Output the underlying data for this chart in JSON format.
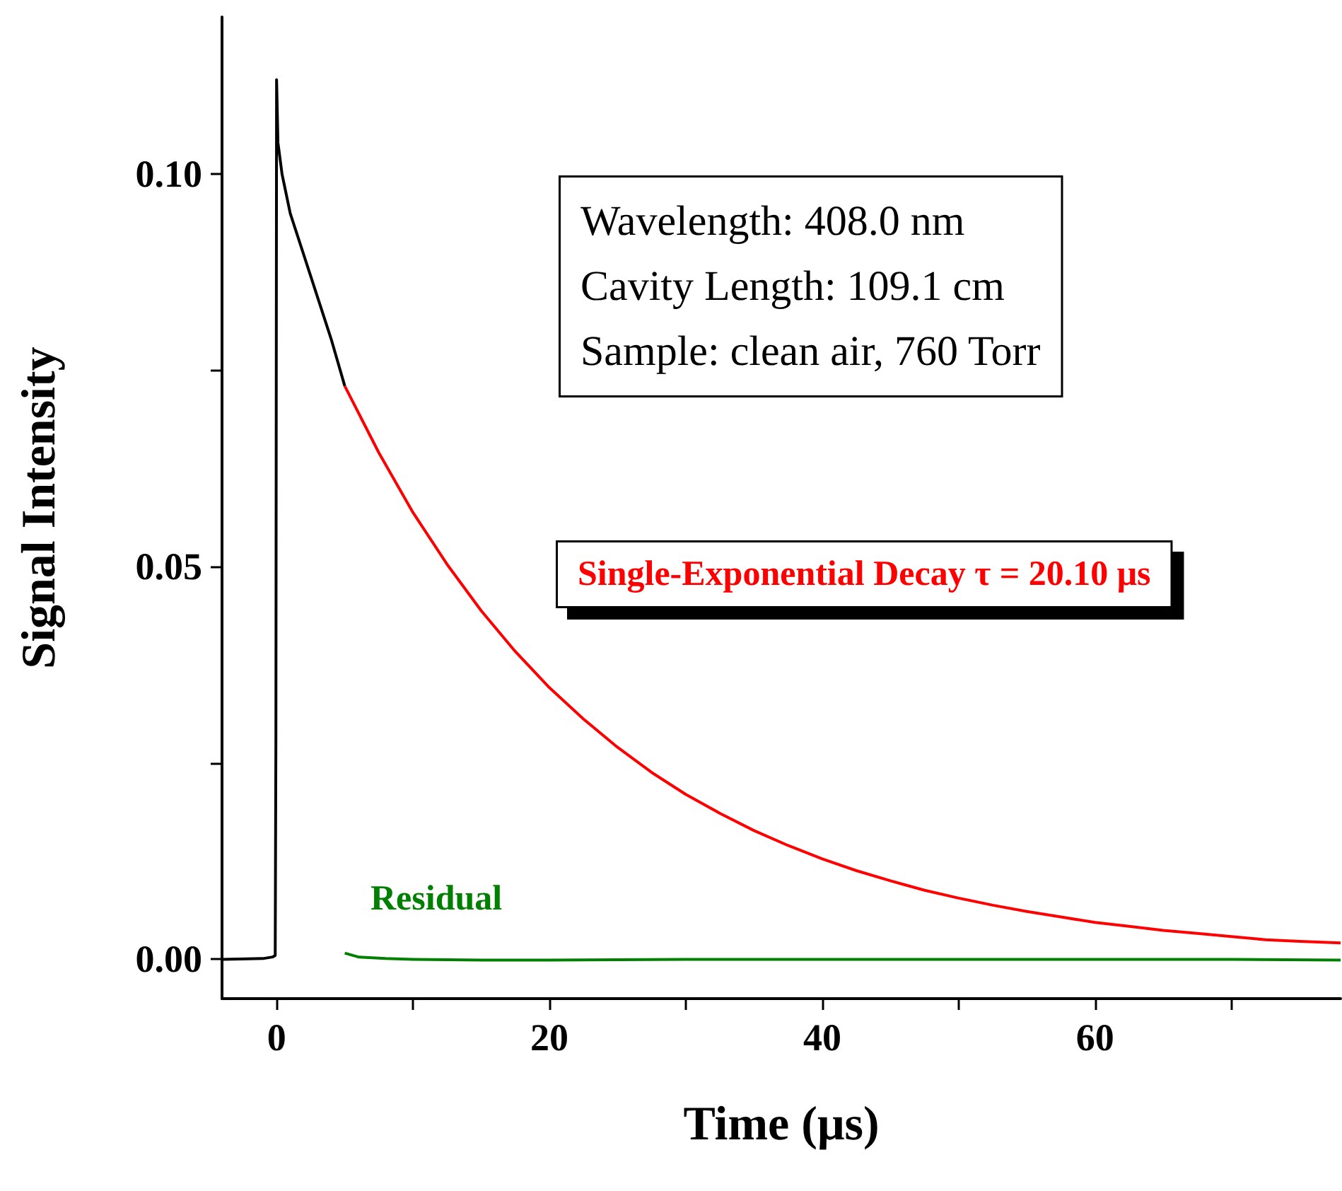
{
  "chart_data": {
    "type": "line",
    "xlabel": "Time (μs)",
    "ylabel": "Signal Intensity",
    "annotations": [
      "Wavelength: 408.0 nm\nCavity Length: 109.1 cm\nSample: clean air, 760 Torr"
    ],
    "series": [
      {
        "color": "#000000",
        "x": [
          -4,
          -1,
          -0.3,
          -0.1,
          -0.05,
          0,
          0.1,
          0.4,
          1,
          2.5,
          4,
          5
        ],
        "values": [
          0.0,
          0.0001,
          0.0003,
          0.0005,
          0.028,
          0.112,
          0.104,
          0.1,
          0.095,
          0.087,
          0.079,
          0.073
        ]
      },
      {
        "name": "Single-Exponential Decay τ = 20.10 μs",
        "color": "#ff0000",
        "x": [
          5,
          7.5,
          10,
          12.5,
          15,
          17.5,
          20,
          22.5,
          25,
          27.5,
          30,
          32.5,
          35,
          37.5,
          40,
          42.5,
          45,
          47.5,
          50,
          52.5,
          55,
          57.5,
          60,
          62.5,
          65,
          67.5,
          70,
          72.5,
          75,
          78
        ],
        "values": [
          0.073,
          0.0645,
          0.0569,
          0.0503,
          0.0444,
          0.0392,
          0.0346,
          0.0306,
          0.027,
          0.0238,
          0.021,
          0.0186,
          0.0164,
          0.0145,
          0.0128,
          0.0113,
          0.01,
          0.0088,
          0.0078,
          0.0069,
          0.0061,
          0.0054,
          0.0047,
          0.0042,
          0.0037,
          0.0033,
          0.0029,
          0.0025,
          0.0023,
          0.0021
        ]
      },
      {
        "name": "Residual",
        "color": "#008000",
        "x": [
          5,
          6,
          8,
          10,
          15,
          20,
          30,
          40,
          50,
          60,
          70,
          78
        ],
        "values": [
          0.0008,
          0.0003,
          0.0001,
          0.0,
          -0.0001,
          -0.0001,
          0.0,
          0.0,
          0.0,
          0.0,
          0.0,
          -0.0001
        ]
      }
    ],
    "xlim": [
      -4,
      78
    ],
    "xticks": [
      0,
      {
        "value": 10,
        "label": null
      },
      20,
      {
        "value": 30,
        "label": null
      },
      40,
      {
        "value": 50,
        "label": null
      },
      60,
      {
        "value": 70,
        "label": null
      }
    ],
    "ylim": [
      -0.005,
      0.12
    ],
    "yticks": [
      {
        "value": 0,
        "label": "0.00"
      },
      {
        "value": 0.025,
        "label": null
      },
      {
        "value": 0.05,
        "label": "0.05"
      },
      {
        "value": 0.075,
        "label": null
      },
      {
        "value": 0.1,
        "label": "0.10"
      }
    ],
    "grid": false,
    "legend": false
  }
}
